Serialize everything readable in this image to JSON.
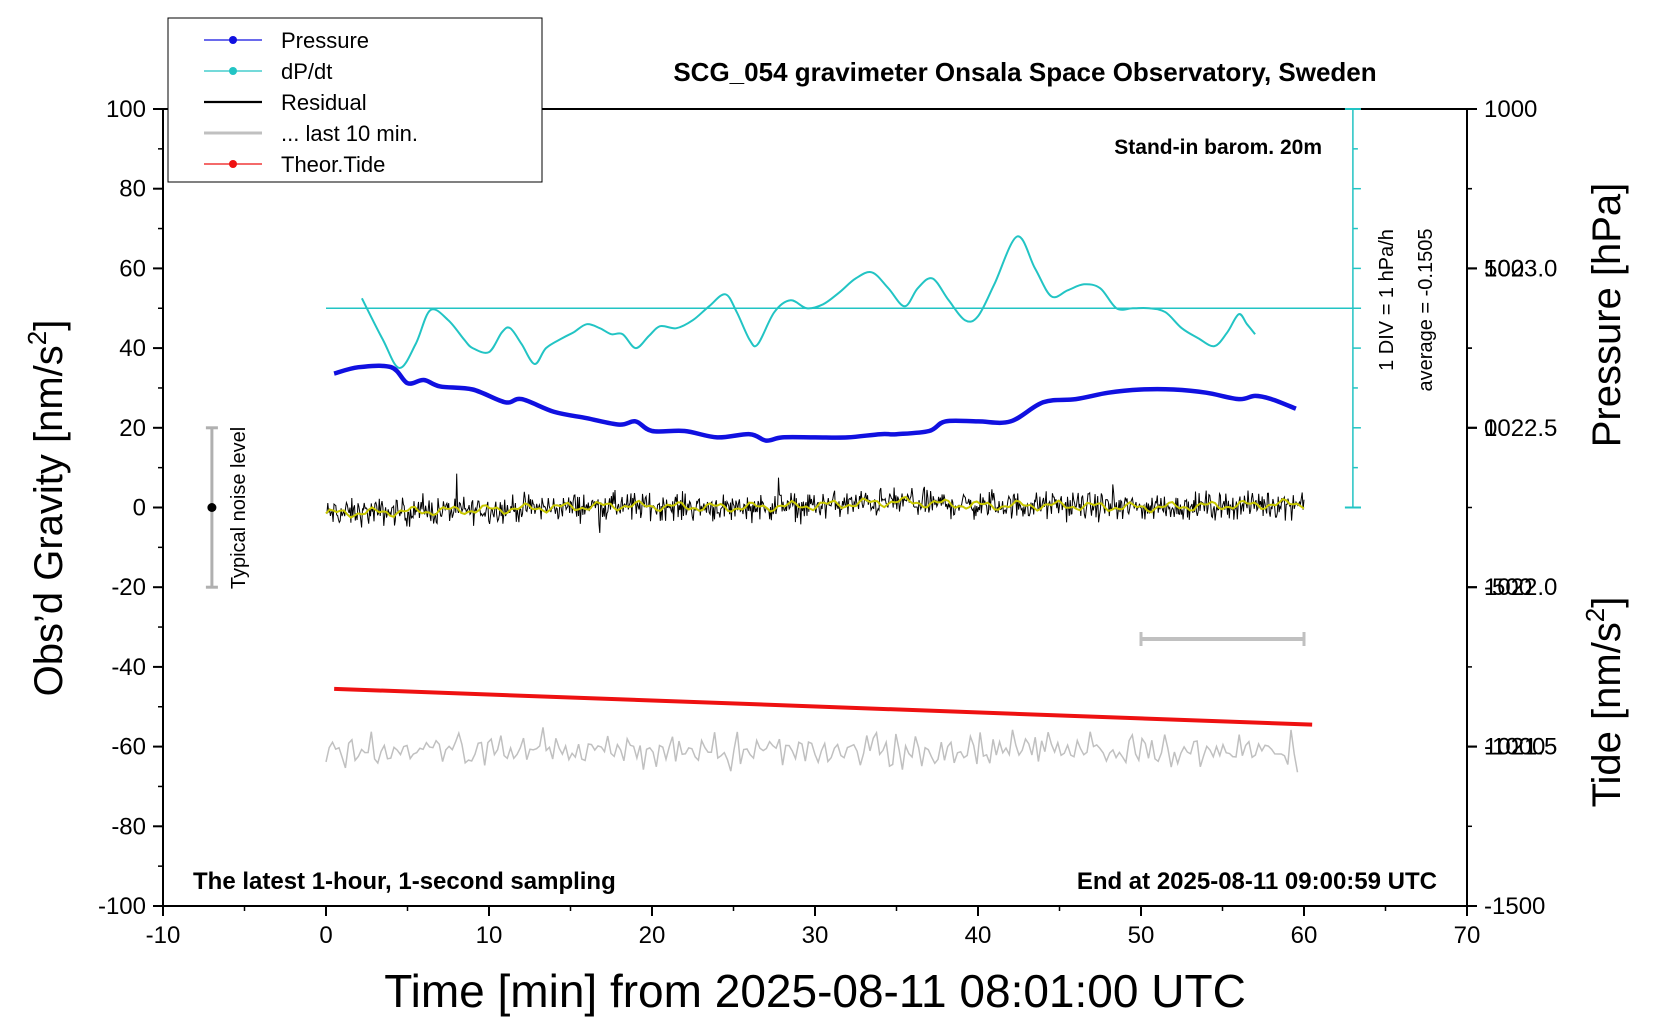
{
  "chart_data": {
    "type": "line",
    "title": "SCG_054 gravimeter Onsala Space Observatory, Sweden",
    "xlabel": "Time [min] from 2025-08-11 08:01:00 UTC",
    "xlim": [
      -10,
      70
    ],
    "x_ticks": [
      "-10",
      "0",
      "10",
      "20",
      "30",
      "40",
      "50",
      "60",
      "70"
    ],
    "y_left": {
      "label_main": "Obs’d Gravity [nm/s",
      "label_sup": "2",
      "label_tail": "]",
      "lim": [
        -100,
        100
      ],
      "ticks": [
        "100",
        "80",
        "60",
        "40",
        "20",
        "0",
        "-20",
        "-40",
        "-60",
        "-80",
        "-100"
      ]
    },
    "y_pressure": {
      "label": "Pressure [hPa]",
      "lim": [
        1021.0,
        1023.5
      ],
      "ticks": [
        "1023.0",
        "1022.5",
        "1022.0",
        "1021.5"
      ]
    },
    "y_tide": {
      "label_main": "Tide [nm/s",
      "label_sup": "2",
      "label_tail": "]",
      "lim": [
        -1500,
        1000
      ],
      "ticks": [
        "1000",
        "500",
        "0",
        "-500",
        "-1000",
        "-1500"
      ]
    },
    "legend": {
      "placement": "top-left",
      "entries": [
        {
          "name": "Pressure",
          "color": "#1010e0",
          "marker": true
        },
        {
          "name": "dP/dt",
          "color": "#22c4c4",
          "marker": true
        },
        {
          "name": "Residual",
          "color": "#000000",
          "marker": false
        },
        {
          "name": "... last 10 min.",
          "color": "#c0c0c0",
          "marker": false
        },
        {
          "name": "Theor.Tide",
          "color": "#ee1111",
          "marker": true
        }
      ]
    },
    "annotations": {
      "barometer": "Stand-in barom. 20m",
      "dpdt_scale": "1 DIV = 1 hPa/h",
      "dpdt_average": "average = -0.1505",
      "noise": "Typical noise level",
      "bottom_left": "The latest 1-hour, 1-second sampling",
      "bottom_right": "End at 2025-08-11 09:00:59 UTC"
    },
    "series": [
      {
        "name": "Pressure",
        "axis": "pressure_hPa",
        "color": "#1010e0",
        "x": [
          0.5,
          2,
          4,
          5,
          6,
          7,
          9,
          11,
          12,
          14,
          16,
          18,
          19,
          20,
          22,
          24,
          26,
          27,
          28,
          30,
          32,
          34,
          35,
          37,
          38,
          40,
          42,
          44,
          46,
          48,
          50,
          52,
          54,
          56,
          57,
          58,
          59.5
        ],
        "y": [
          1022.67,
          1022.69,
          1022.69,
          1022.64,
          1022.65,
          1022.63,
          1022.62,
          1022.58,
          1022.59,
          1022.55,
          1022.53,
          1022.51,
          1022.52,
          1022.49,
          1022.49,
          1022.47,
          1022.48,
          1022.46,
          1022.47,
          1022.47,
          1022.47,
          1022.48,
          1022.48,
          1022.49,
          1022.52,
          1022.52,
          1022.52,
          1022.58,
          1022.59,
          1022.61,
          1022.62,
          1022.62,
          1022.61,
          1022.59,
          1022.6,
          1022.59,
          1022.56
        ]
      },
      {
        "name": "dP/dt",
        "axis": "gravity_nm_s2",
        "color": "#22c4c4",
        "baseline": 50,
        "x": [
          2.2,
          3.5,
          4.5,
          5.5,
          6.4,
          7.5,
          8.5,
          9,
          10,
          10.8,
          11.3,
          12,
          12.8,
          13.5,
          14.5,
          15.2,
          16,
          16.8,
          17.5,
          18.2,
          19,
          19.8,
          20.5,
          21.5,
          22.5,
          23.5,
          24.5,
          25.2,
          26,
          26.5,
          27.5,
          28.5,
          29.5,
          30.5,
          31.5,
          32.5,
          33.5,
          34.5,
          35.5,
          36.3,
          37.2,
          38.2,
          39.2,
          40,
          41,
          42.4,
          43.5,
          44.5,
          45.5,
          46.5,
          47.5,
          48.5,
          49.5,
          50.5,
          51.5,
          52.5,
          53.5,
          54.5,
          55.3,
          56,
          56.5,
          57
        ],
        "y": [
          52.5,
          42,
          35,
          41,
          49.5,
          47,
          42,
          40,
          39,
          44,
          45,
          41,
          36,
          40,
          42.5,
          44,
          46,
          45,
          43.5,
          43.5,
          40,
          43,
          45.5,
          45,
          47,
          50.5,
          53.5,
          49,
          42,
          41,
          49,
          52,
          50,
          51,
          54,
          57.5,
          59,
          55,
          50.5,
          55,
          57.5,
          52,
          47,
          48,
          56,
          68,
          60,
          53,
          54.5,
          56,
          55,
          50,
          50,
          50,
          49,
          45,
          42.5,
          40.5,
          44,
          48.5,
          46,
          43.5
        ]
      },
      {
        "name": "Residual",
        "axis": "gravity_nm_s2",
        "color": "#000000",
        "x_range": [
          0,
          60
        ],
        "center": [
          {
            "x": 0,
            "y": -1.5
          },
          {
            "x": 5,
            "y": -1
          },
          {
            "x": 10,
            "y": -0.5
          },
          {
            "x": 18,
            "y": 0.5
          },
          {
            "x": 25,
            "y": 0
          },
          {
            "x": 30,
            "y": 0.5
          },
          {
            "x": 35,
            "y": 1.5
          },
          {
            "x": 40,
            "y": 0.5
          },
          {
            "x": 45,
            "y": 0.5
          },
          {
            "x": 50,
            "y": 0
          },
          {
            "x": 55,
            "y": 0.5
          },
          {
            "x": 60,
            "y": 1
          }
        ],
        "noise_amplitude": 5,
        "smoothed_color": "#c8c800"
      },
      {
        "name": "... last 10 min.",
        "axis": "gravity_nm_s2",
        "color": "#c0c0c0",
        "x_range": [
          0,
          59.6
        ],
        "center": -61,
        "amplitude": 4,
        "marker_bar": {
          "x": [
            50,
            60
          ],
          "y": -33
        }
      },
      {
        "name": "Theor.Tide",
        "axis": "gravity_nm_s2",
        "color": "#ee1111",
        "x": [
          0.5,
          60.5
        ],
        "y": [
          -45.5,
          -54.5
        ]
      }
    ],
    "noise_level": {
      "x": -7,
      "y": [
        -20,
        20
      ],
      "center": 0
    },
    "dpdt_scale_axis": {
      "x": 63,
      "y_top": 100,
      "y_bottom": 0
    }
  }
}
